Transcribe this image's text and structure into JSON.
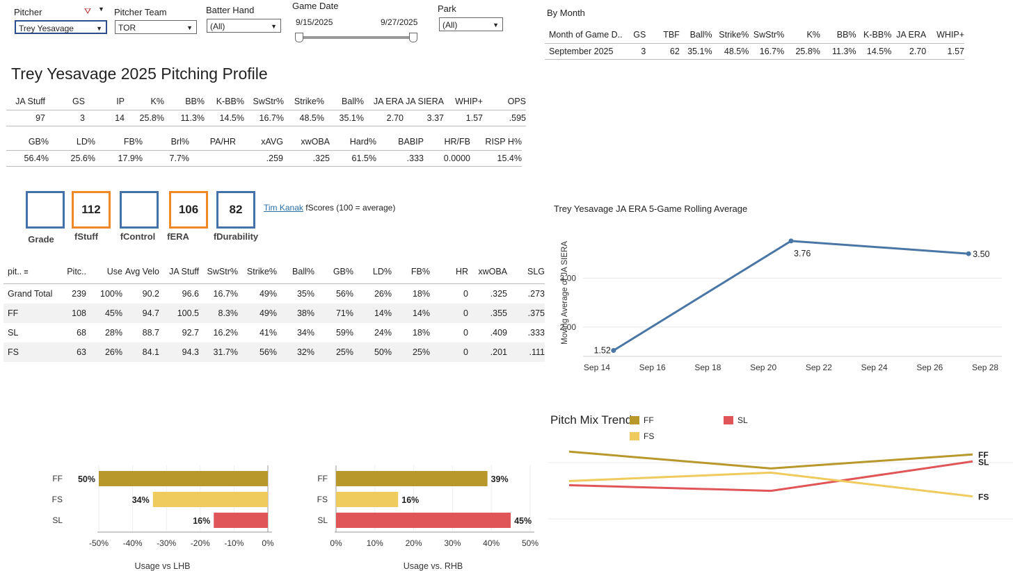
{
  "filters": {
    "pitcher": {
      "label": "Pitcher",
      "value": "Trey Yesavage"
    },
    "team": {
      "label": "Pitcher Team",
      "value": "TOR"
    },
    "batter_hand": {
      "label": "Batter Hand",
      "value": "(All)"
    },
    "game_date": {
      "label": "Game Date",
      "start": "9/15/2025",
      "end": "9/27/2025"
    },
    "park": {
      "label": "Park",
      "value": "(All)"
    }
  },
  "profile_title": "Trey Yesavage 2025 Pitching Profile",
  "stats1": {
    "headers": [
      "JA Stuff",
      "GS",
      "IP",
      "K%",
      "BB%",
      "K-BB%",
      "SwStr%",
      "Strike%",
      "Ball%",
      "JA ERA",
      "JA SIERA",
      "WHIP+",
      "OPS"
    ],
    "values": [
      "97",
      "3",
      "14",
      "25.8%",
      "11.3%",
      "14.5%",
      "16.7%",
      "48.5%",
      "35.1%",
      "2.70",
      "3.37",
      "1.57",
      ".595"
    ]
  },
  "stats2": {
    "headers": [
      "GB%",
      "LD%",
      "FB%",
      "Brl%",
      "PA/HR",
      "xAVG",
      "xwOBA",
      "Hard%",
      "BABIP",
      "HR/FB",
      "RISP H%"
    ],
    "values": [
      "56.4%",
      "25.6%",
      "17.9%",
      "7.7%",
      "",
      ".259",
      ".325",
      "61.5%",
      ".333",
      "0.0000",
      "15.4%"
    ]
  },
  "fscores": {
    "boxes": [
      {
        "label": "Grade",
        "value": ""
      },
      {
        "label": "fStuff",
        "value": "112"
      },
      {
        "label": "fControl",
        "value": ""
      },
      {
        "label": "fERA",
        "value": "106"
      },
      {
        "label": "fDurability",
        "value": "82"
      }
    ],
    "link": "Tim Kanak",
    "note": "fScores (100 = average)"
  },
  "pitch_table": {
    "headers": [
      "pit..",
      "Pitc..",
      "Use",
      "Avg Velo",
      "JA Stuff",
      "SwStr%",
      "Strike%",
      "Ball%",
      "GB%",
      "LD%",
      "FB%",
      "HR",
      "xwOBA",
      "SLG"
    ],
    "rows": [
      [
        "Grand Total",
        "239",
        "100%",
        "90.2",
        "96.6",
        "16.7%",
        "49%",
        "35%",
        "56%",
        "26%",
        "18%",
        "0",
        ".325",
        ".273"
      ],
      [
        "FF",
        "108",
        "45%",
        "94.7",
        "100.5",
        "8.3%",
        "49%",
        "38%",
        "71%",
        "14%",
        "14%",
        "0",
        ".355",
        ".375"
      ],
      [
        "SL",
        "68",
        "28%",
        "88.7",
        "92.7",
        "16.2%",
        "41%",
        "34%",
        "59%",
        "24%",
        "18%",
        "0",
        ".409",
        ".333"
      ],
      [
        "FS",
        "63",
        "26%",
        "84.1",
        "94.3",
        "31.7%",
        "56%",
        "32%",
        "25%",
        "50%",
        "25%",
        "0",
        ".201",
        ".111"
      ]
    ]
  },
  "by_month": {
    "title": "By Month",
    "headers": [
      "Month of Game D..",
      "GS",
      "TBF",
      "Ball%",
      "Strike%",
      "SwStr%",
      "K%",
      "BB%",
      "K-BB%",
      "JA ERA",
      "WHIP+"
    ],
    "rows": [
      [
        "September 2025",
        "3",
        "62",
        "35.1%",
        "48.5%",
        "16.7%",
        "25.8%",
        "11.3%",
        "14.5%",
        "2.70",
        "1.57"
      ]
    ]
  },
  "colors": {
    "ff": "#b8972b",
    "fs": "#efcb5e",
    "sl": "#e05557",
    "line": "#4a76a5",
    "box_blue": "#4472a8",
    "box_orange": "#f0882a"
  },
  "chart_data": [
    {
      "type": "line",
      "title": "Trey Yesavage JA ERA 5-Game Rolling Average",
      "ylabel": "Moving Average of JA SIERA",
      "xlabel": "",
      "x": [
        "Sep 14",
        "Sep 21",
        "Sep 27"
      ],
      "x_day": [
        14.6,
        21.0,
        27.4
      ],
      "values": [
        1.52,
        3.76,
        3.5
      ],
      "data_labels": [
        "1.52",
        "3.76",
        "3.50"
      ],
      "x_ticks": [
        "Sep 14",
        "Sep 16",
        "Sep 18",
        "Sep 20",
        "Sep 22",
        "Sep 24",
        "Sep 26",
        "Sep 28"
      ],
      "x_tick_days": [
        14,
        16,
        18,
        20,
        22,
        24,
        26,
        28
      ],
      "y_ticks": [
        "2.00",
        "3.00"
      ],
      "ylim": [
        1.4,
        4.0
      ],
      "xlim": [
        13.5,
        28.6
      ]
    },
    {
      "type": "line",
      "title": "Pitch Mix Trend",
      "legend": [
        "FF",
        "SL",
        "FS"
      ],
      "series": [
        {
          "name": "FF",
          "values": [
            0.52,
            0.4,
            0.5
          ]
        },
        {
          "name": "SL",
          "values": [
            0.28,
            0.24,
            0.45
          ]
        },
        {
          "name": "FS",
          "values": [
            0.31,
            0.37,
            0.2
          ]
        }
      ],
      "x": [
        1,
        2,
        3
      ]
    },
    {
      "type": "bar",
      "title": "",
      "xlabel": "Usage vs LHB",
      "categories": [
        "FF",
        "FS",
        "SL"
      ],
      "values": [
        -50,
        -34,
        -16
      ],
      "data_labels": [
        "50%",
        "34%",
        "16%"
      ],
      "x_ticks": [
        "-50%",
        "-40%",
        "-30%",
        "-20%",
        "-10%",
        "0%"
      ],
      "xlim": [
        -50,
        0
      ]
    },
    {
      "type": "bar",
      "title": "",
      "xlabel": "Usage vs. RHB",
      "categories": [
        "FF",
        "FS",
        "SL"
      ],
      "values": [
        39,
        16,
        45
      ],
      "data_labels": [
        "39%",
        "16%",
        "45%"
      ],
      "x_ticks": [
        "0%",
        "10%",
        "20%",
        "30%",
        "40%",
        "50%"
      ],
      "xlim": [
        0,
        50
      ]
    }
  ]
}
